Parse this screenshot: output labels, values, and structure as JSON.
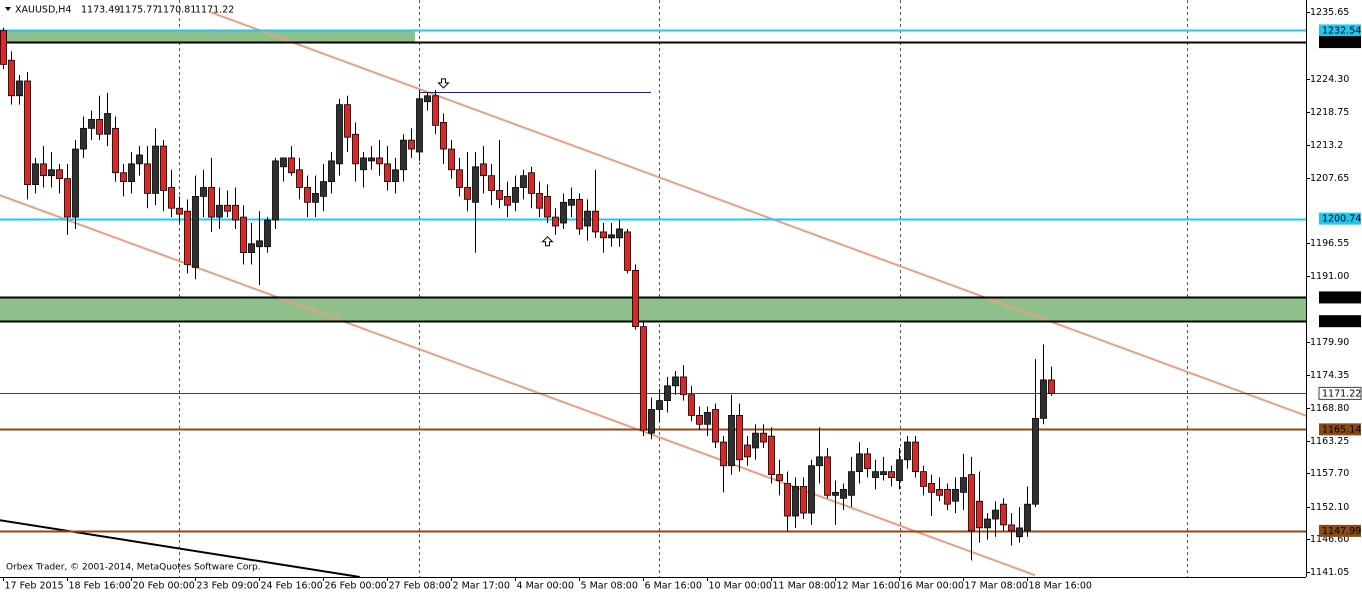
{
  "chart_data": {
    "type": "candlestick",
    "title": "XAUUSD,H4",
    "categories": [
      "17 Feb 2015",
      null,
      null,
      null,
      null,
      null,
      null,
      null,
      "18 Feb 16:00",
      null,
      null,
      null,
      null,
      null,
      null,
      null,
      "20 Feb 00:00",
      null,
      null,
      null,
      null,
      null,
      null,
      null,
      "23 Feb 09:00",
      null,
      null,
      null,
      null,
      null,
      null,
      null,
      "24 Feb 16:00",
      null,
      null,
      null,
      null,
      null,
      null,
      null,
      "26 Feb 00:00",
      null,
      null,
      null,
      null,
      null,
      null,
      null,
      "27 Feb 08:00",
      null,
      null,
      null,
      null,
      null,
      null,
      null,
      "2 Mar 17:00",
      null,
      null,
      null,
      null,
      null,
      null,
      null,
      "4 Mar 00:00",
      null,
      null,
      null,
      null,
      null,
      null,
      null,
      "5 Mar 08:00",
      null,
      null,
      null,
      null,
      null,
      null,
      null,
      "6 Mar 16:00",
      null,
      null,
      null,
      null,
      null,
      null,
      null,
      "10 Mar 00:00",
      null,
      null,
      null,
      null,
      null,
      null,
      null,
      "11 Mar 08:00",
      null,
      null,
      null,
      null,
      null,
      null,
      null,
      "12 Mar 16:00",
      null,
      null,
      null,
      null,
      null,
      null,
      null,
      "16 Mar 00:00",
      null,
      null,
      null,
      null,
      null,
      null,
      null,
      "17 Mar 08:00",
      null,
      null,
      null,
      null,
      null,
      null,
      null,
      "18 Mar 16:00",
      null,
      null,
      null
    ],
    "open": [
      1232.5,
      1227.5,
      1221.5,
      1224,
      1206.5,
      1210,
      1208,
      1209,
      1207.5,
      1201,
      1212.5,
      1216,
      1217.5,
      1215,
      1216,
      1208.5,
      1207,
      1210,
      1210,
      1205,
      1213,
      1206,
      1202.5,
      1202,
      1192.5,
      1204.5,
      1206,
      1201,
      1203,
      1203,
      1201,
      1195,
      1196,
      1196,
      1200.5,
      1209.5,
      1211,
      1209,
      1206,
      1203.5,
      1204.5,
      1207,
      1210,
      1220,
      1215,
      1209,
      1210.5,
      1211,
      1210,
      1207,
      1209,
      1214,
      1212,
      1220.5,
      1221.5,
      1217,
      1212.5,
      1209,
      1206,
      1203.5,
      1210,
      1208,
      1205.5,
      1204.5,
      1203.5,
      1206,
      1208.5,
      1205,
      1204.5,
      1201,
      1200,
      1203,
      1204,
      1199.5,
      1202,
      1198.5,
      1197.5,
      1197.5,
      1198.5,
      1192,
      1182.5,
      1164.5,
      1168.5,
      1170,
      1172.5,
      1174,
      1171,
      1167.5,
      1166,
      1168.5,
      1163,
      1159,
      1167.5,
      1162.5,
      1162,
      1164.5,
      1164,
      1157.5,
      1156,
      1150.5,
      1155.5,
      1151,
      1159,
      1160.5,
      1154,
      1153.5,
      1154,
      1158,
      1161,
      1157,
      1157.5,
      1158,
      1156.5,
      1160,
      1163,
      1158,
      1156,
      1155,
      1155,
      1153,
      1154.5,
      1157.5,
      1153,
      1148.5,
      1150,
      1152.5,
      1149,
      1147,
      1148,
      1152.5,
      1167,
      1173.49
    ],
    "high": [
      1233,
      1229,
      1225,
      1225.5,
      1211,
      1213,
      1212,
      1210,
      1210,
      1214,
      1218,
      1219,
      1221.5,
      1222,
      1218,
      1210,
      1212,
      1213,
      1213,
      1216,
      1214,
      1209,
      1204.5,
      1204,
      1208,
      1209,
      1211,
      1206,
      1205.5,
      1206,
      1203,
      1200,
      1202,
      1201,
      1211,
      1211,
      1213,
      1211,
      1208,
      1208,
      1210,
      1212,
      1221,
      1221.5,
      1217,
      1212,
      1213,
      1214,
      1213,
      1211,
      1215,
      1216,
      1222.5,
      1222,
      1222.5,
      1218.5,
      1214,
      1211,
      1212,
      1212,
      1213,
      1210,
      1214,
      1207,
      1208,
      1209,
      1209.5,
      1207,
      1206.5,
      1202.5,
      1205,
      1206,
      1205,
      1204,
      1209,
      1200,
      1200,
      1200.5,
      1199,
      1193,
      1183.5,
      1170.5,
      1172,
      1174,
      1175,
      1176,
      1172.5,
      1169,
      1169,
      1169.5,
      1164,
      1171,
      1169.5,
      1164,
      1166,
      1166,
      1165.5,
      1160,
      1158,
      1157,
      1157,
      1160,
      1165.5,
      1162,
      1156.5,
      1156,
      1160.5,
      1163,
      1162,
      1160,
      1160.5,
      1159,
      1162,
      1164,
      1164,
      1159,
      1157.5,
      1157,
      1156,
      1157,
      1161,
      1160.5,
      1158,
      1151,
      1153,
      1153.5,
      1151,
      1152,
      1155.5,
      1177,
      1179.5,
      1175.77
    ],
    "low": [
      1226,
      1220,
      1220,
      1204,
      1205,
      1206,
      1206,
      1205,
      1198,
      1199,
      1211,
      1214,
      1214,
      1213,
      1207,
      1204.5,
      1205,
      1208,
      1202.5,
      1203,
      1202,
      1201,
      1200,
      1191.5,
      1190.5,
      1201,
      1198.5,
      1199,
      1201,
      1199,
      1193,
      1193,
      1189.5,
      1195,
      1199,
      1207,
      1208,
      1204,
      1201,
      1201,
      1202,
      1205,
      1208,
      1212,
      1207,
      1206,
      1209,
      1208,
      1205.5,
      1205,
      1207,
      1211,
      1210.5,
      1219,
      1215,
      1210,
      1207.5,
      1204.5,
      1202,
      1195,
      1205,
      1203,
      1202.5,
      1201,
      1202,
      1204,
      1202.5,
      1201,
      1200,
      1198,
      1199,
      1201,
      1198,
      1197,
      1197.5,
      1195,
      1196,
      1196,
      1191.5,
      1182,
      1164,
      1163.5,
      1166.5,
      1168,
      1171,
      1170,
      1166.5,
      1165,
      1164,
      1162,
      1154.5,
      1157.5,
      1158,
      1159,
      1160,
      1162,
      1156,
      1154,
      1148,
      1148.5,
      1150,
      1149,
      1156,
      1153.5,
      1149,
      1151.5,
      1152,
      1156,
      1157,
      1155,
      1156.5,
      1155.5,
      1155,
      1158.5,
      1157,
      1154,
      1150.5,
      1153,
      1151.5,
      1151,
      1151.5,
      1143,
      1146,
      1146.5,
      1147,
      1148,
      1145.5,
      1146,
      1147,
      1152,
      1166,
      1170.81
    ],
    "close": [
      1226.8,
      1221.5,
      1224,
      1206.5,
      1210,
      1208,
      1209,
      1207.5,
      1201,
      1212.5,
      1216,
      1217.5,
      1215,
      1218.5,
      1208.5,
      1207,
      1210,
      1211.5,
      1205,
      1213,
      1205.5,
      1202.5,
      1201.5,
      1193,
      1204.5,
      1206,
      1201,
      1203,
      1202,
      1200.5,
      1195,
      1196.5,
      1197,
      1200.5,
      1210.5,
      1211,
      1208.5,
      1206,
      1203.5,
      1205,
      1207,
      1210.5,
      1220,
      1214.5,
      1210,
      1211,
      1211,
      1210,
      1207,
      1209,
      1214,
      1212.5,
      1221,
      1221.5,
      1216.5,
      1212.5,
      1209,
      1206,
      1204,
      1209.5,
      1208,
      1205.5,
      1204,
      1203,
      1206,
      1208,
      1205,
      1202.5,
      1201,
      1199.5,
      1203.5,
      1204,
      1199,
      1202,
      1198.5,
      1197.5,
      1198,
      1199,
      1192,
      1182.5,
      1165,
      1168.5,
      1170,
      1172.5,
      1174,
      1171,
      1167.5,
      1166,
      1168,
      1163,
      1159,
      1167.5,
      1160,
      1160.5,
      1164.5,
      1163,
      1157.5,
      1156.5,
      1150.5,
      1155.5,
      1151,
      1159,
      1160.5,
      1154,
      1154.5,
      1155,
      1158,
      1161,
      1158.5,
      1158,
      1158,
      1157,
      1160,
      1163,
      1158,
      1155.5,
      1154.5,
      1154,
      1152.5,
      1155,
      1157,
      1148,
      1148.5,
      1150,
      1151.5,
      1149,
      1148,
      1148.5,
      1152.5,
      1167,
      1173.5,
      1171.22
    ],
    "up_color": "#303030",
    "down_color": "#d42a2a",
    "ylim": [
      1140.2,
      1237.68
    ],
    "yticks": [
      1235.65,
      {
        "value": 1224.3,
        "label": "1224.30"
      },
      1218.75,
      1213.2,
      1207.65,
      1196.55,
      {
        "value": 1191,
        "label": "1191.00"
      },
      {
        "value": 1179.9,
        "label": "1179.90"
      },
      1174.35,
      {
        "value": 1168.8,
        "label": "1168.80"
      },
      1163.25,
      {
        "value": 1157.7,
        "label": "1157.70"
      },
      {
        "value": 1152.1,
        "label": "1152.10"
      },
      {
        "value": 1146.6,
        "label": "1146.60"
      },
      1141.05
    ],
    "levels": [
      {
        "value": 1232.54,
        "color": "#1ec8f0"
      },
      {
        "value": 1230.57,
        "color": "#000000"
      },
      {
        "value": 1200.74,
        "color": "#1ec8f0"
      },
      {
        "value": 1187.43,
        "color": "#000000"
      },
      {
        "value": 1183.42,
        "color": "#000000"
      },
      {
        "value": 1171.22,
        "color": "#404040"
      },
      {
        "value": 1165.14,
        "color": "#8b4a14"
      },
      {
        "value": 1147.99,
        "color": "#8b4a14"
      }
    ],
    "zones": [
      {
        "from": 1230.57,
        "to": 1232.54,
        "color": "#8fbf8a",
        "end": 51
      },
      {
        "from": 1183.42,
        "to": 1187.43,
        "color": "#8fbf8a"
      }
    ],
    "hline": {
      "value": 1222.1,
      "color": "#1a1aa8",
      "from": 52,
      "to": 81
    },
    "trendlines": [
      {
        "color": "#e8a080",
        "points": [
          [
            25.9,
            1235.65
          ],
          [
            164.4,
            1166.7
          ]
        ]
      },
      {
        "color": "#e8a080",
        "points": [
          [
            -0.4,
            1204.7
          ],
          [
            129,
            1140.5
          ]
        ]
      },
      {
        "color": "#000000",
        "points": [
          [
            -0.4,
            1149.8
          ],
          [
            44.6,
            1140.2
          ]
        ]
      }
    ],
    "arrows": [
      {
        "index": 55,
        "price": 1223.5,
        "dir": "down"
      },
      {
        "index": 68,
        "price": 1197,
        "dir": "up"
      }
    ]
  },
  "footer": "Orbex Trader, © 2001-2014, MetaQuotes Software Corp."
}
